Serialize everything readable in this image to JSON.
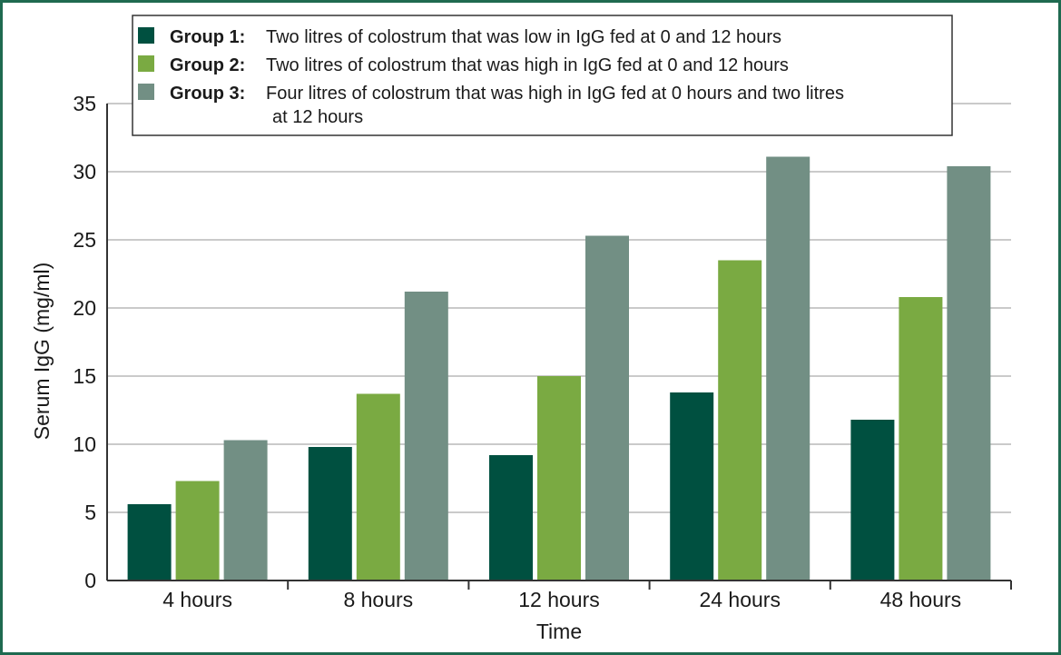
{
  "chart_data": {
    "type": "bar",
    "title": "",
    "xlabel": "Time",
    "ylabel": "Serum IgG (mg/ml)",
    "ylim": [
      0,
      35
    ],
    "yticks": [
      0,
      5,
      10,
      15,
      20,
      25,
      30,
      35
    ],
    "grid": "horizontal",
    "legend_position": "top",
    "categories": [
      "4 hours",
      "8 hours",
      "12 hours",
      "24 hours",
      "48 hours"
    ],
    "series": [
      {
        "key": "Group 1:",
        "name": "Two litres of colostrum that was low in IgG fed at 0 and 12 hours",
        "color": "#005040",
        "values": [
          5.6,
          9.8,
          9.2,
          13.8,
          11.8
        ]
      },
      {
        "key": "Group 2:",
        "name": "Two litres of colostrum that was high in IgG fed at 0 and 12 hours",
        "color": "#7aaa42",
        "values": [
          7.3,
          13.7,
          15.0,
          23.5,
          20.8
        ]
      },
      {
        "key": "Group 3:",
        "name_lines": [
          "Four litres of colostrum that was high in IgG fed at 0 hours and two litres",
          "at 12 hours"
        ],
        "color": "#728f84",
        "values": [
          10.3,
          21.2,
          25.3,
          31.1,
          30.4
        ]
      }
    ]
  },
  "colors": {
    "frame": "#1f6a50",
    "grid": "#b8b8b8",
    "axis": "#333333"
  }
}
